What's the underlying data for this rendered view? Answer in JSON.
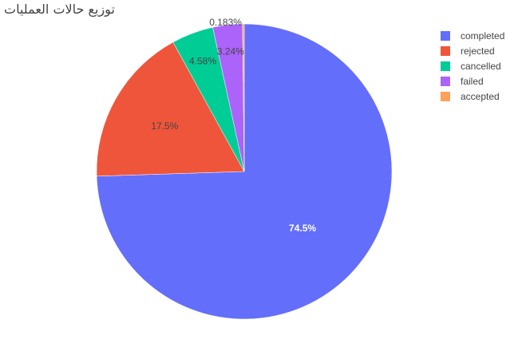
{
  "chart_data": {
    "type": "pie",
    "title": "توزيع حالات العمليات",
    "slices": [
      {
        "name": "completed",
        "percent_label": "74.5%",
        "fraction": 0.745,
        "color": "#636efa",
        "label_color": "#ffffff",
        "label_position": "inside"
      },
      {
        "name": "rejected",
        "percent_label": "17.5%",
        "fraction": 0.175,
        "color": "#ef553b",
        "label_color": "#444444",
        "label_position": "inside"
      },
      {
        "name": "cancelled",
        "percent_label": "4.58%",
        "fraction": 0.0458,
        "color": "#00cc96",
        "label_color": "#444444",
        "label_position": "inside"
      },
      {
        "name": "failed",
        "percent_label": "3.24%",
        "fraction": 0.0324,
        "color": "#ab63fa",
        "label_color": "#444444",
        "label_position": "inside"
      },
      {
        "name": "accepted",
        "percent_label": "0.183%",
        "fraction": 0.00183,
        "color": "#ffa15a",
        "label_color": "#444444",
        "label_position": "outside"
      }
    ],
    "start_angle": "top",
    "direction": "clockwise",
    "legend": {
      "placement": "top-right",
      "items": [
        "completed",
        "rejected",
        "cancelled",
        "failed",
        "accepted"
      ]
    }
  }
}
